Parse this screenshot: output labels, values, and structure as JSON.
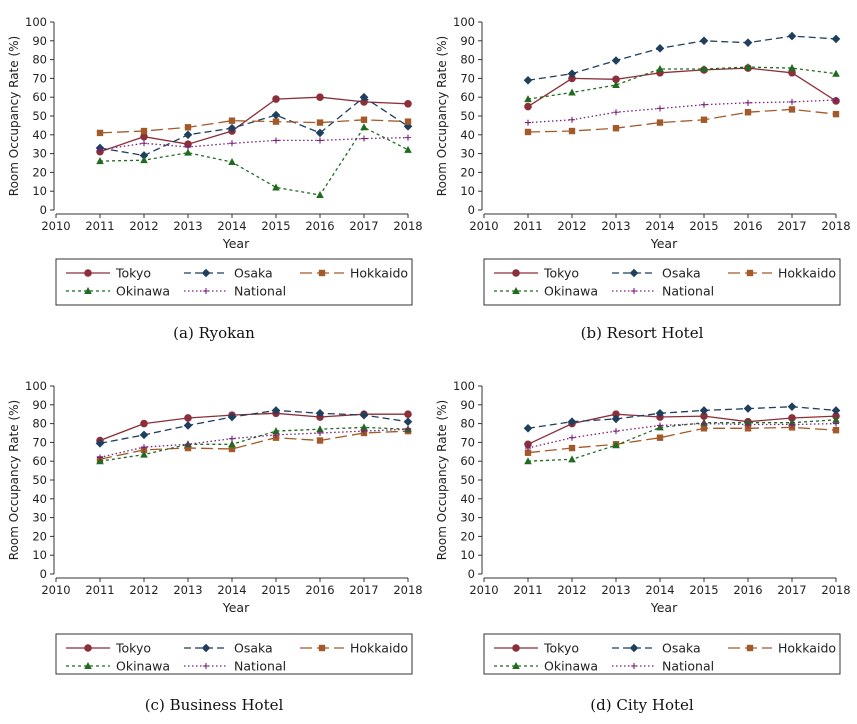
{
  "colors": {
    "Tokyo": "#8b2f3a",
    "Osaka": "#1f3f5f",
    "Hokkaido": "#a35a2a",
    "Okinawa": "#1f6b1f",
    "National": "#7a1f7a"
  },
  "styles": {
    "Tokyo": {
      "dash": "",
      "marker": "circle"
    },
    "Osaka": {
      "dash": "7,4",
      "marker": "diamond"
    },
    "Hokkaido": {
      "dash": "12,5",
      "marker": "square"
    },
    "Okinawa": {
      "dash": "3,3",
      "marker": "triangle"
    },
    "National": {
      "dash": "1.5,2.5",
      "marker": "plus"
    }
  },
  "panels": [
    {
      "caption": "(a) Ryokan"
    },
    {
      "caption": "(b) Resort Hotel"
    },
    {
      "caption": "(c) Business Hotel"
    },
    {
      "caption": "(d) City Hotel"
    }
  ],
  "chart_data": [
    {
      "type": "line",
      "title": "(a) Ryokan",
      "xlabel": "Year",
      "ylabel": "Room Occupancy Rate (%)",
      "x_ticks": [
        2010,
        2011,
        2012,
        2013,
        2014,
        2015,
        2016,
        2017,
        2018
      ],
      "y_ticks": [
        0,
        10,
        20,
        30,
        40,
        50,
        60,
        70,
        80,
        90,
        100
      ],
      "xlim": [
        2010,
        2018
      ],
      "ylim": [
        0,
        100
      ],
      "legend": "bottom",
      "x": [
        2011,
        2012,
        2013,
        2014,
        2015,
        2016,
        2017,
        2018
      ],
      "series": [
        {
          "name": "Tokyo",
          "values": [
            31,
            39,
            35,
            42,
            59,
            60,
            57.5,
            56.5
          ]
        },
        {
          "name": "Osaka",
          "values": [
            33,
            29,
            40,
            43.5,
            50.5,
            41,
            60,
            44.5
          ]
        },
        {
          "name": "Hokkaido",
          "values": [
            41,
            42,
            44,
            47.5,
            47,
            46.5,
            48,
            47
          ]
        },
        {
          "name": "Okinawa",
          "values": [
            26,
            26.5,
            30.5,
            25.5,
            12,
            8,
            44,
            32
          ]
        },
        {
          "name": "National",
          "values": [
            32,
            35.5,
            33.5,
            35.5,
            37,
            37,
            38,
            38.5
          ]
        }
      ]
    },
    {
      "type": "line",
      "title": "(b) Resort Hotel",
      "xlabel": "Year",
      "ylabel": "Room Occupancy Rate (%)",
      "x_ticks": [
        2010,
        2011,
        2012,
        2013,
        2014,
        2015,
        2016,
        2017,
        2018
      ],
      "y_ticks": [
        0,
        10,
        20,
        30,
        40,
        50,
        60,
        70,
        80,
        90,
        100
      ],
      "xlim": [
        2010,
        2018
      ],
      "ylim": [
        0,
        100
      ],
      "legend": "bottom",
      "x": [
        2011,
        2012,
        2013,
        2014,
        2015,
        2016,
        2017,
        2018
      ],
      "series": [
        {
          "name": "Tokyo",
          "values": [
            55,
            70,
            69.5,
            73,
            74.5,
            75.5,
            73,
            58
          ]
        },
        {
          "name": "Osaka",
          "values": [
            69,
            72.5,
            79.5,
            86,
            90,
            89,
            92.5,
            91
          ]
        },
        {
          "name": "Hokkaido",
          "values": [
            41.5,
            42,
            43.5,
            46.5,
            48,
            52,
            53.5,
            51
          ]
        },
        {
          "name": "Okinawa",
          "values": [
            59,
            62.5,
            66.5,
            75,
            75,
            76,
            75.5,
            72.5
          ]
        },
        {
          "name": "National",
          "values": [
            46.5,
            48,
            52,
            54,
            56,
            57,
            57.5,
            58.5
          ]
        }
      ]
    },
    {
      "type": "line",
      "title": "(c) Business Hotel",
      "xlabel": "Year",
      "ylabel": "Room Occupancy Rate (%)",
      "x_ticks": [
        2010,
        2011,
        2012,
        2013,
        2014,
        2015,
        2016,
        2017,
        2018
      ],
      "y_ticks": [
        0,
        10,
        20,
        30,
        40,
        50,
        60,
        70,
        80,
        90,
        100
      ],
      "xlim": [
        2010,
        2018
      ],
      "ylim": [
        0,
        100
      ],
      "legend": "bottom",
      "x": [
        2011,
        2012,
        2013,
        2014,
        2015,
        2016,
        2017,
        2018
      ],
      "series": [
        {
          "name": "Tokyo",
          "values": [
            71,
            80,
            83,
            84.5,
            85.5,
            83.5,
            85,
            85
          ]
        },
        {
          "name": "Osaka",
          "values": [
            69.5,
            74,
            79,
            83.5,
            87,
            85.5,
            84.5,
            81
          ]
        },
        {
          "name": "Hokkaido",
          "values": [
            61,
            66,
            67,
            66.5,
            72.5,
            71,
            75,
            76
          ]
        },
        {
          "name": "Okinawa",
          "values": [
            60,
            63.5,
            69,
            69,
            76,
            77,
            78,
            77
          ]
        },
        {
          "name": "National",
          "values": [
            62,
            67.5,
            69,
            72,
            74,
            75,
            76,
            77
          ]
        }
      ]
    },
    {
      "type": "line",
      "title": "(d) City Hotel",
      "xlabel": "Year",
      "ylabel": "Room Occupancy Rate (%)",
      "x_ticks": [
        2010,
        2011,
        2012,
        2013,
        2014,
        2015,
        2016,
        2017,
        2018
      ],
      "y_ticks": [
        0,
        10,
        20,
        30,
        40,
        50,
        60,
        70,
        80,
        90,
        100
      ],
      "xlim": [
        2010,
        2018
      ],
      "ylim": [
        0,
        100
      ],
      "legend": "bottom",
      "x": [
        2011,
        2012,
        2013,
        2014,
        2015,
        2016,
        2017,
        2018
      ],
      "series": [
        {
          "name": "Tokyo",
          "values": [
            69,
            80,
            85,
            83.5,
            84,
            81,
            83,
            84
          ]
        },
        {
          "name": "Osaka",
          "values": [
            77.5,
            81,
            82.5,
            85.5,
            87,
            88,
            89,
            87
          ]
        },
        {
          "name": "Hokkaido",
          "values": [
            64.5,
            67,
            69,
            72.5,
            77.5,
            77.5,
            78,
            76.5
          ]
        },
        {
          "name": "Okinawa",
          "values": [
            60,
            61,
            68.5,
            78,
            80.5,
            80.5,
            80.5,
            82
          ]
        },
        {
          "name": "National",
          "values": [
            67,
            72.5,
            76,
            79,
            80,
            79.5,
            79.5,
            80
          ]
        }
      ]
    }
  ]
}
